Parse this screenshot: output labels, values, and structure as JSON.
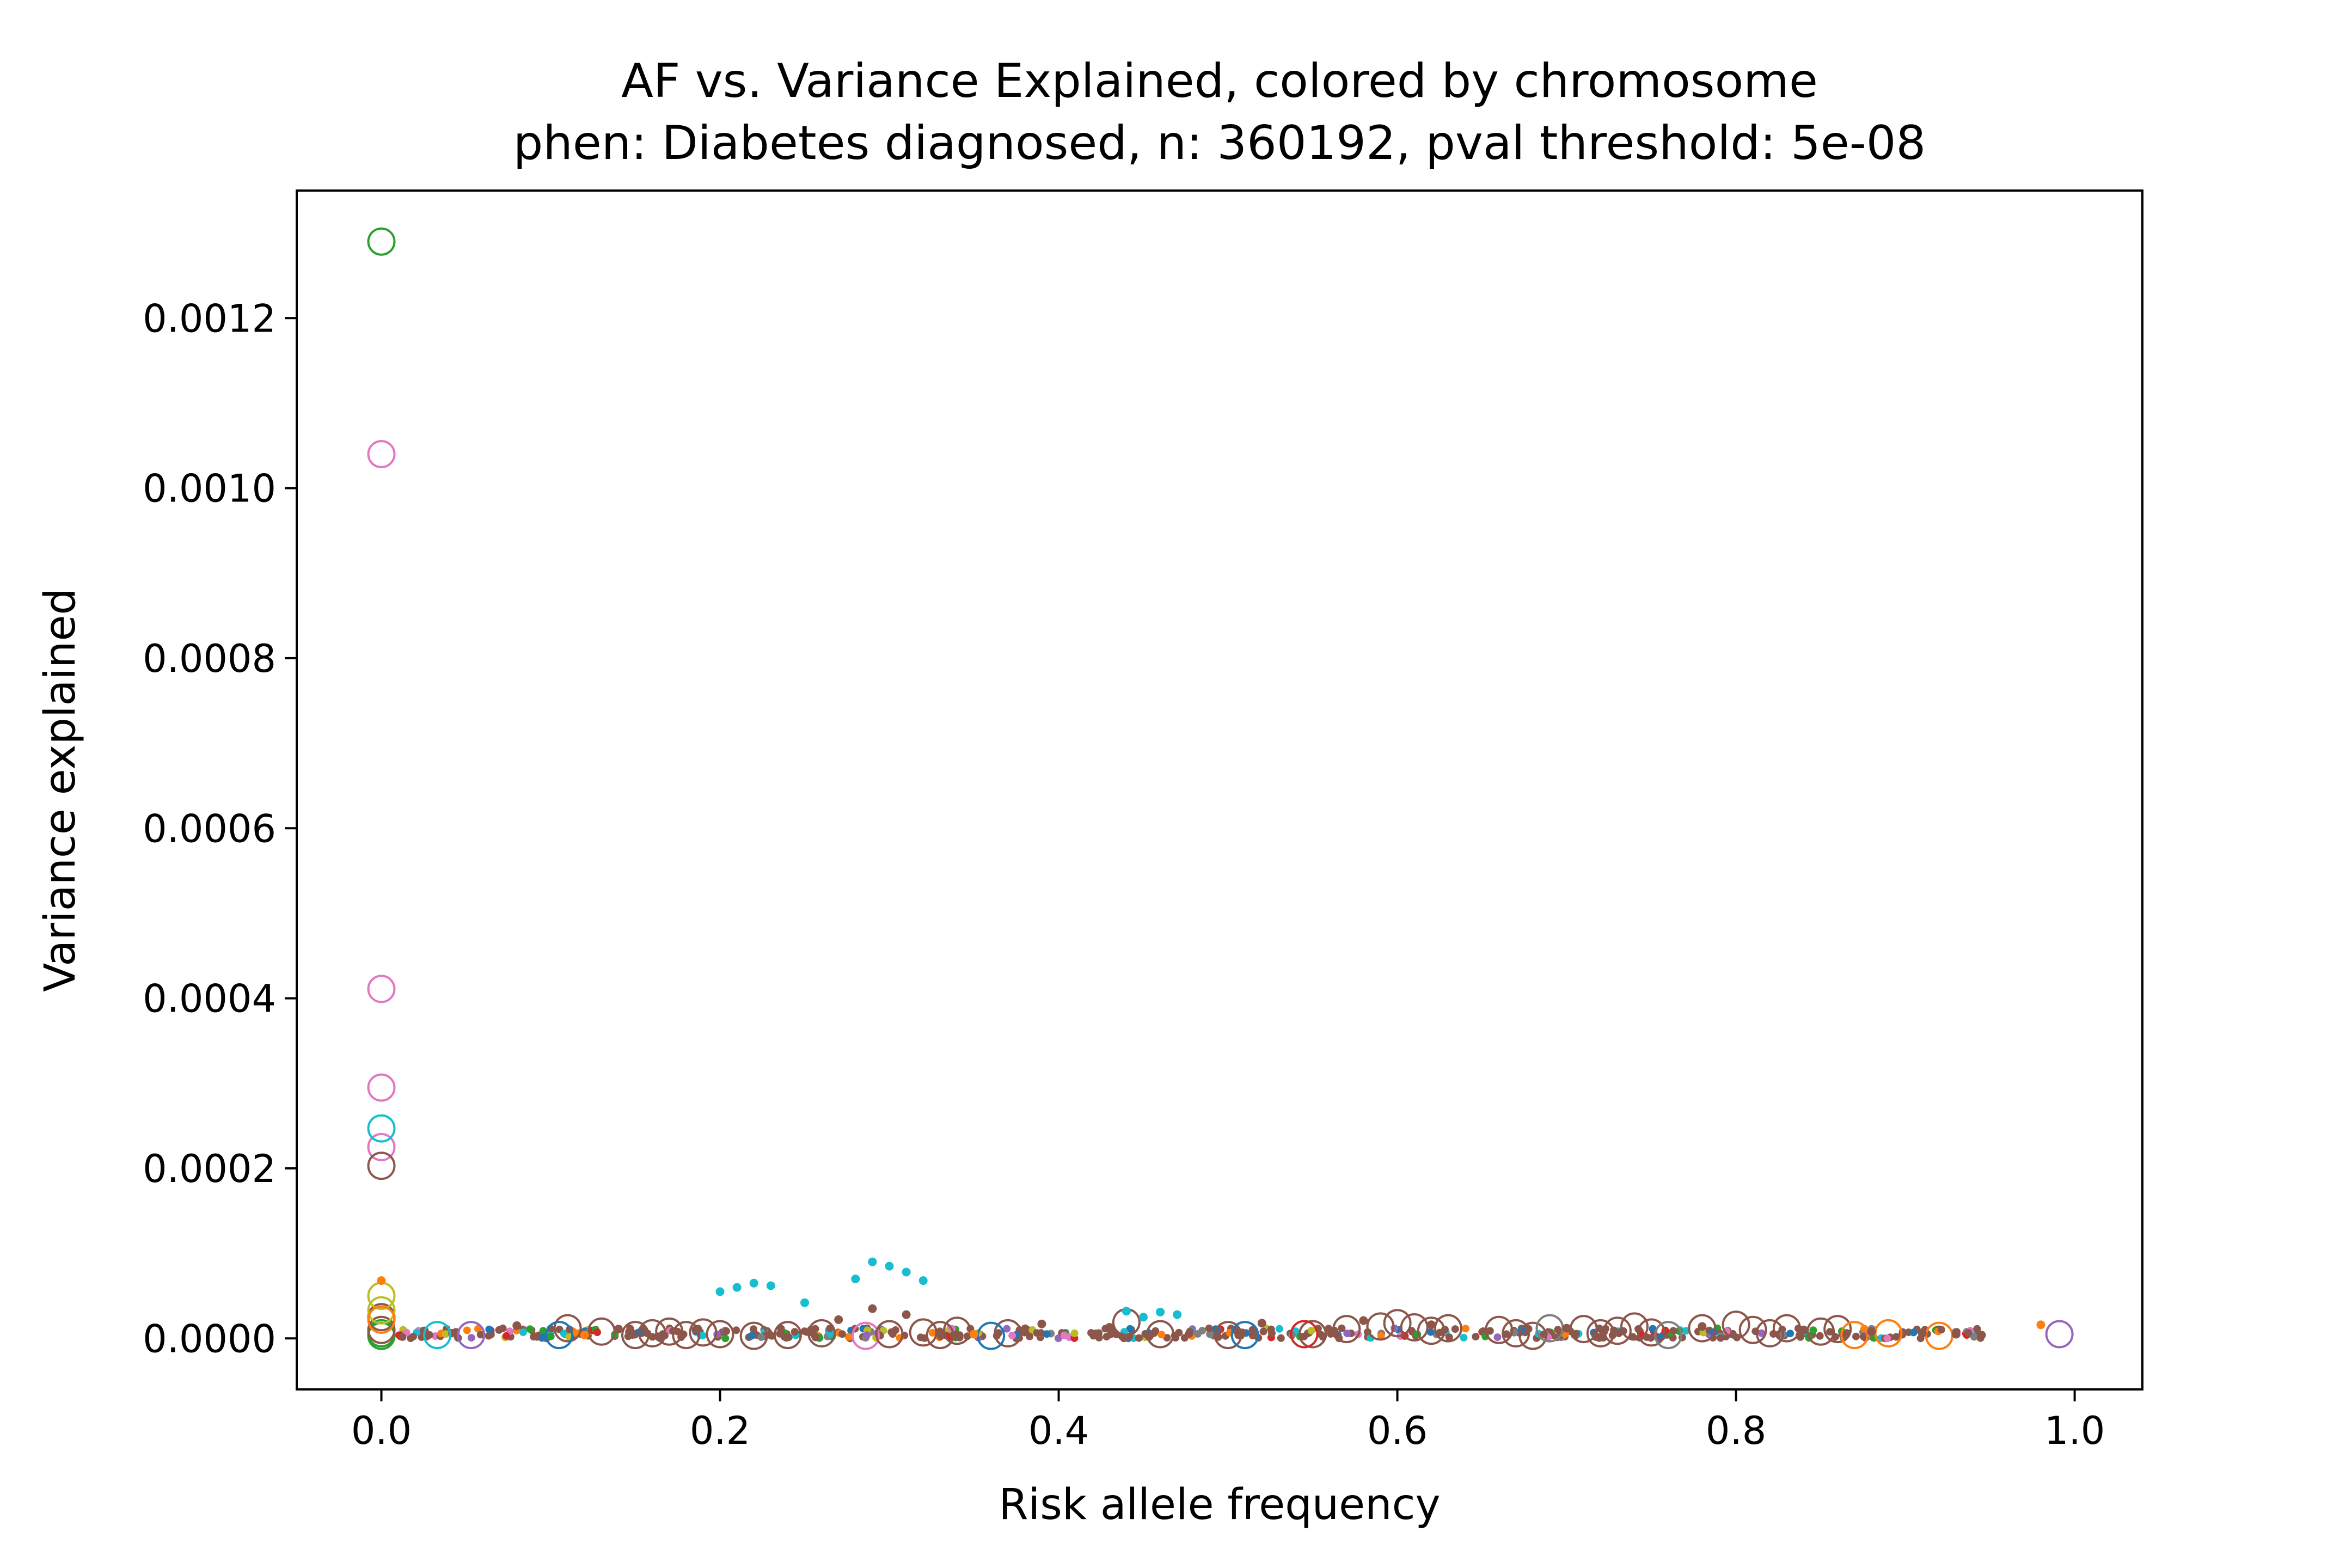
{
  "chart_data": {
    "type": "scatter",
    "title": "AF vs. Variance Explained, colored by chromosome",
    "subtitle": "phen: Diabetes diagnosed, n: 360192, pval threshold: 5e-08",
    "xlabel": "Risk allele frequency",
    "ylabel": "Variance explained",
    "xlim": [
      -0.05,
      1.04
    ],
    "ylim": [
      -6e-05,
      0.00135
    ],
    "x_ticks": [
      0.0,
      0.2,
      0.4,
      0.6,
      0.8,
      1.0
    ],
    "x_tick_labels": [
      "0.0",
      "0.2",
      "0.4",
      "0.6",
      "0.8",
      "1.0"
    ],
    "y_ticks": [
      0.0,
      0.0002,
      0.0004,
      0.0006,
      0.0008,
      0.001,
      0.0012
    ],
    "y_tick_labels": [
      "0.0000",
      "0.0002",
      "0.0004",
      "0.0006",
      "0.0008",
      "0.0010",
      "0.0012"
    ],
    "grid": false,
    "legend": "none",
    "colors": {
      "blue": "#1f77b4",
      "orange": "#ff7f0e",
      "green": "#2ca02c",
      "red": "#d62728",
      "purple": "#9467bd",
      "brown": "#8c564b",
      "pink": "#e377c2",
      "gray": "#7f7f7f",
      "olive": "#bcbd22",
      "cyan": "#17becf"
    },
    "series": [
      {
        "color": "#2ca02c",
        "marker": "open-circle",
        "x": [
          0.0,
          0.0,
          0.0
        ],
        "y": [
          0.00129,
          6e-06,
          3e-06
        ]
      },
      {
        "color": "#e377c2",
        "marker": "open-circle",
        "x": [
          0.0,
          0.0,
          0.0,
          0.0,
          0.286
        ],
        "y": [
          0.00104,
          0.000411,
          0.000295,
          0.000225,
          3e-06
        ]
      },
      {
        "color": "#17becf",
        "marker": "open-circle",
        "x": [
          0.0,
          0.033
        ],
        "y": [
          0.000247,
          4e-06
        ]
      },
      {
        "color": "#8c564b",
        "marker": "open-circle",
        "x": [
          0.0,
          0.0,
          0.0,
          0.11,
          0.13,
          0.15,
          0.16,
          0.17,
          0.18,
          0.19,
          0.2,
          0.22,
          0.24,
          0.26,
          0.3,
          0.32,
          0.33,
          0.34,
          0.37,
          0.44,
          0.46,
          0.5,
          0.55,
          0.57,
          0.59,
          0.6,
          0.61,
          0.62,
          0.63,
          0.66,
          0.67,
          0.68,
          0.71,
          0.72,
          0.73,
          0.74,
          0.75,
          0.78,
          0.8,
          0.81,
          0.82,
          0.83,
          0.85,
          0.86
        ],
        "y": [
          0.000203,
          2.5e-05,
          1e-05,
          1.2e-05,
          8e-06,
          4e-06,
          6e-06,
          8e-06,
          4e-06,
          7e-06,
          5e-06,
          3e-06,
          4e-06,
          6e-06,
          5e-06,
          7e-06,
          4e-06,
          9e-06,
          6e-06,
          1.9e-05,
          5e-06,
          4e-06,
          5e-06,
          1.1e-05,
          1.4e-05,
          1.8e-05,
          1.3e-05,
          9e-06,
          1.2e-05,
          1e-05,
          6e-06,
          3e-06,
          1.1e-05,
          6e-06,
          9e-06,
          1.4e-05,
          7e-06,
          1.2e-05,
          1.6e-05,
          1e-05,
          6e-06,
          1.2e-05,
          8e-06,
          1.1e-05
        ]
      },
      {
        "color": "#bcbd22",
        "marker": "open-circle",
        "x": [
          0.0,
          0.0
        ],
        "y": [
          5e-05,
          3.3e-05
        ]
      },
      {
        "color": "#ff7f0e",
        "marker": "open-circle",
        "x": [
          0.0,
          0.87,
          0.89,
          0.92
        ],
        "y": [
          2.2e-05,
          4e-06,
          6e-06,
          3e-06
        ]
      },
      {
        "color": "#1f77b4",
        "marker": "open-circle",
        "x": [
          0.105,
          0.36,
          0.51
        ],
        "y": [
          4e-06,
          3e-06,
          4e-06
        ]
      },
      {
        "color": "#9467bd",
        "marker": "open-circle",
        "x": [
          0.053,
          0.991
        ],
        "y": [
          4e-06,
          5e-06
        ]
      },
      {
        "color": "#d62728",
        "marker": "open-circle",
        "x": [
          0.545
        ],
        "y": [
          5e-06
        ]
      },
      {
        "color": "#7f7f7f",
        "marker": "open-circle",
        "x": [
          0.69,
          0.76
        ],
        "y": [
          1.2e-05,
          4e-06
        ]
      },
      {
        "color": "#17becf",
        "marker": "dot",
        "x": [
          0.2,
          0.21,
          0.22,
          0.23,
          0.25,
          0.28,
          0.29,
          0.3,
          0.31,
          0.32,
          0.44,
          0.45,
          0.46,
          0.47
        ],
        "y": [
          5.5e-05,
          6e-05,
          6.5e-05,
          6.2e-05,
          4.2e-05,
          7e-05,
          9e-05,
          8.5e-05,
          7.8e-05,
          6.8e-05,
          3.2e-05,
          2.5e-05,
          3.1e-05,
          2.8e-05
        ]
      },
      {
        "color": "#8c564b",
        "marker": "dot",
        "x": [
          0.08,
          0.14,
          0.27,
          0.29,
          0.31,
          0.39,
          0.43,
          0.52,
          0.58,
          0.62,
          0.7,
          0.78,
          0.84,
          0.88,
          0.91,
          0.93,
          0.945
        ],
        "y": [
          1.5e-05,
          1.1e-05,
          2.2e-05,
          3.5e-05,
          2.8e-05,
          1.7e-05,
          1.3e-05,
          1.8e-05,
          2.1e-05,
          1.6e-05,
          1.2e-05,
          1.4e-05,
          1e-05,
          8e-06,
          6e-06,
          5e-06,
          4e-06
        ]
      },
      {
        "color": "#ff7f0e",
        "marker": "dot",
        "x": [
          0.0,
          0.12,
          0.35,
          0.98
        ],
        "y": [
          6.8e-05,
          4e-06,
          5e-06,
          1.6e-05
        ]
      }
    ]
  }
}
